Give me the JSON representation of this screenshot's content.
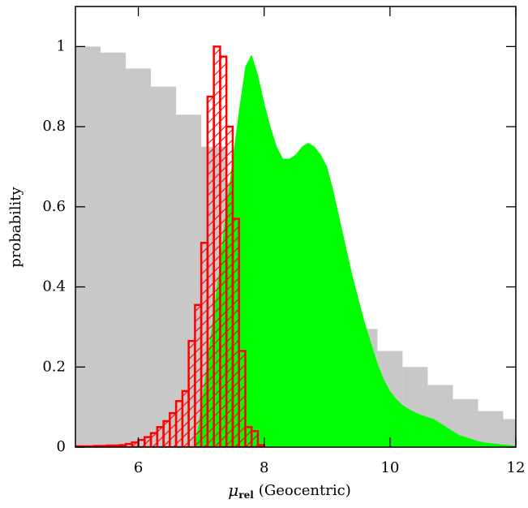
{
  "chart_data": {
    "type": "histogram",
    "xlabel": {
      "symbol": "μ",
      "subscript": "rel",
      "text": "(Geocentric)"
    },
    "ylabel": "probability",
    "xlim": [
      5,
      12
    ],
    "ylim": [
      0,
      1.1
    ],
    "xticks": [
      6,
      8,
      10,
      12
    ],
    "yticks": [
      0,
      0.2,
      0.4,
      0.6,
      0.8,
      1
    ],
    "series": [
      {
        "type": "histogram",
        "color": "#c8c8c8",
        "bins": [
          5.0,
          5.4,
          5.8,
          6.2,
          6.6,
          7.0,
          7.4,
          7.8,
          8.2,
          8.6,
          9.0,
          9.4,
          9.8,
          10.2,
          10.6,
          11.0,
          11.4,
          11.8,
          12.2
        ],
        "values": [
          1.0,
          0.985,
          0.945,
          0.9,
          0.83,
          0.75,
          0.66,
          0.58,
          0.5,
          0.43,
          0.36,
          0.295,
          0.24,
          0.2,
          0.155,
          0.12,
          0.09,
          0.07
        ]
      },
      {
        "type": "area",
        "color": "#00ff00",
        "x": [
          6.9,
          7.0,
          7.1,
          7.2,
          7.3,
          7.4,
          7.5,
          7.6,
          7.7,
          7.8,
          7.9,
          8.0,
          8.1,
          8.2,
          8.3,
          8.4,
          8.5,
          8.6,
          8.7,
          8.8,
          8.9,
          9.0,
          9.1,
          9.2,
          9.3,
          9.4,
          9.5,
          9.6,
          9.7,
          9.8,
          9.9,
          10.0,
          10.1,
          10.2,
          10.3,
          10.4,
          10.5,
          10.6,
          10.7,
          10.8,
          10.9,
          11.0,
          11.1,
          11.2,
          11.3,
          11.4,
          11.5,
          11.6,
          11.7,
          11.8,
          11.9,
          12.0
        ],
        "values": [
          0,
          0.1,
          0.22,
          0.34,
          0.46,
          0.6,
          0.72,
          0.84,
          0.95,
          0.98,
          0.93,
          0.86,
          0.8,
          0.75,
          0.72,
          0.72,
          0.73,
          0.75,
          0.76,
          0.75,
          0.73,
          0.7,
          0.64,
          0.57,
          0.5,
          0.43,
          0.37,
          0.31,
          0.26,
          0.21,
          0.17,
          0.14,
          0.12,
          0.105,
          0.095,
          0.087,
          0.08,
          0.075,
          0.07,
          0.06,
          0.05,
          0.04,
          0.03,
          0.025,
          0.02,
          0.015,
          0.012,
          0.01,
          0.008,
          0.006,
          0.005,
          0.003
        ]
      },
      {
        "type": "histogram",
        "color": "#ff0000",
        "hatch": true,
        "bins": [
          5.0,
          5.1,
          5.2,
          5.3,
          5.4,
          5.5,
          5.6,
          5.7,
          5.8,
          5.9,
          6.0,
          6.1,
          6.2,
          6.3,
          6.4,
          6.5,
          6.6,
          6.7,
          6.8,
          6.9,
          7.0,
          7.1,
          7.2,
          7.3,
          7.4,
          7.5,
          7.6,
          7.7,
          7.8,
          7.9,
          8.0
        ],
        "values": [
          0.002,
          0.002,
          0.002,
          0.003,
          0.003,
          0.004,
          0.004,
          0.005,
          0.008,
          0.012,
          0.018,
          0.025,
          0.035,
          0.05,
          0.065,
          0.085,
          0.115,
          0.14,
          0.265,
          0.355,
          0.51,
          0.875,
          1.0,
          0.975,
          0.8,
          0.57,
          0.24,
          0.05,
          0.04,
          0.005
        ]
      }
    ]
  }
}
